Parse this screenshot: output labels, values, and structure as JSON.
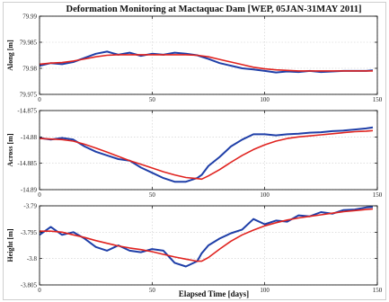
{
  "figure": {
    "title": "Deformation Monitoring at Mactaquac Dam [WEP, 05JAN-31MAY 2011]",
    "xlabel": "Elapsed Time [days]"
  },
  "colors": {
    "observed": "#1f3fa8",
    "model": "#e0231f",
    "axes": "#000000",
    "grid": "#cccccc"
  },
  "chart_data": [
    {
      "type": "line",
      "ylabel": "Along [m]",
      "xlim": [
        0,
        150
      ],
      "ylim": [
        79.975,
        79.99
      ],
      "x_ticks": [
        0,
        50,
        100,
        150
      ],
      "x_tick_labels": [
        "0",
        "50",
        "100",
        "150"
      ],
      "y_ticks": [
        79.975,
        79.98,
        79.985,
        79.99
      ],
      "y_tick_labels": [
        "79.975",
        "79.98",
        "79.985",
        "79.99"
      ],
      "grid": true,
      "series": [
        {
          "x": [
            0,
            5,
            10,
            15,
            20,
            25,
            30,
            35,
            40,
            45,
            50,
            55,
            60,
            65,
            70,
            75,
            80,
            85,
            90,
            95,
            100,
            105,
            110,
            115,
            120,
            125,
            130,
            135,
            140,
            145,
            148
          ],
          "values": [
            79.9805,
            79.981,
            79.9808,
            79.9812,
            79.982,
            79.9828,
            79.9832,
            79.9826,
            79.983,
            79.9824,
            79.9828,
            79.9826,
            79.983,
            79.9828,
            79.9825,
            79.9818,
            79.981,
            79.9805,
            79.98,
            79.9798,
            79.9795,
            79.9792,
            79.9794,
            79.9793,
            79.9795,
            79.9793,
            79.9794,
            79.9795,
            79.9795,
            79.9795,
            79.9796
          ]
        },
        {
          "x": [
            0,
            5,
            10,
            15,
            20,
            25,
            30,
            35,
            40,
            45,
            50,
            55,
            60,
            65,
            70,
            75,
            80,
            85,
            90,
            95,
            100,
            105,
            110,
            115,
            120,
            125,
            130,
            135,
            140,
            145,
            148
          ],
          "values": [
            79.9808,
            79.981,
            79.9811,
            79.9814,
            79.9818,
            79.9822,
            79.9825,
            79.9826,
            79.9826,
            79.9826,
            79.9826,
            79.9826,
            79.9826,
            79.9826,
            79.9825,
            79.9822,
            79.9817,
            79.9812,
            79.9807,
            79.9802,
            79.9799,
            79.9797,
            79.9796,
            79.9795,
            79.9795,
            79.9795,
            79.9795,
            79.9795,
            79.9795,
            79.9795,
            79.9795
          ]
        }
      ]
    },
    {
      "type": "line",
      "ylabel": "Across [m]",
      "xlim": [
        0,
        150
      ],
      "ylim": [
        -14.89,
        -14.875
      ],
      "x_ticks": [
        0,
        50,
        100,
        150
      ],
      "x_tick_labels": [
        "0",
        "50",
        "100",
        "150"
      ],
      "y_ticks": [
        -14.89,
        -14.885,
        -14.88,
        -14.875
      ],
      "y_tick_labels": [
        "-14.89",
        "-14.885",
        "-14.88",
        "-14.875"
      ],
      "grid": true,
      "series": [
        {
          "x": [
            0,
            5,
            10,
            15,
            20,
            25,
            30,
            35,
            40,
            45,
            50,
            55,
            60,
            65,
            70,
            72,
            75,
            80,
            85,
            90,
            95,
            100,
            105,
            110,
            115,
            120,
            125,
            130,
            135,
            140,
            145,
            148
          ],
          "values": [
            -14.8802,
            -14.8805,
            -14.8802,
            -14.8805,
            -14.8818,
            -14.8828,
            -14.8835,
            -14.8842,
            -14.8845,
            -14.8858,
            -14.8868,
            -14.8878,
            -14.8885,
            -14.8885,
            -14.8878,
            -14.8872,
            -14.8855,
            -14.8838,
            -14.8818,
            -14.8805,
            -14.8795,
            -14.8795,
            -14.8797,
            -14.8795,
            -14.8794,
            -14.8792,
            -14.8791,
            -14.8789,
            -14.8788,
            -14.8786,
            -14.8784,
            -14.8782
          ]
        },
        {
          "x": [
            0,
            5,
            10,
            15,
            20,
            25,
            30,
            35,
            40,
            45,
            50,
            55,
            60,
            65,
            70,
            72,
            75,
            80,
            85,
            90,
            95,
            100,
            105,
            110,
            115,
            120,
            125,
            130,
            135,
            140,
            145,
            148
          ],
          "values": [
            -14.8803,
            -14.8804,
            -14.8805,
            -14.8808,
            -14.8814,
            -14.8821,
            -14.8829,
            -14.8837,
            -14.8845,
            -14.8852,
            -14.8859,
            -14.8866,
            -14.8872,
            -14.8877,
            -14.8879,
            -14.888,
            -14.8874,
            -14.8862,
            -14.8848,
            -14.8835,
            -14.8824,
            -14.8815,
            -14.8808,
            -14.8803,
            -14.88,
            -14.8798,
            -14.8796,
            -14.8794,
            -14.8792,
            -14.879,
            -14.8789,
            -14.8788
          ]
        }
      ]
    },
    {
      "type": "line",
      "ylabel": "Height [m]",
      "xlim": [
        0,
        150
      ],
      "ylim": [
        -3.805,
        -3.79
      ],
      "x_ticks": [
        0,
        50,
        100,
        150
      ],
      "x_tick_labels": [
        "0",
        "50",
        "100",
        "150"
      ],
      "y_ticks": [
        -3.805,
        -3.8,
        -3.795,
        -3.79
      ],
      "y_tick_labels": [
        "-3.805",
        "-3.8",
        "-3.795",
        "-3.79"
      ],
      "grid": true,
      "series": [
        {
          "x": [
            0,
            5,
            10,
            15,
            20,
            25,
            30,
            35,
            40,
            45,
            50,
            55,
            60,
            65,
            70,
            72,
            75,
            80,
            85,
            90,
            95,
            100,
            105,
            110,
            115,
            120,
            125,
            130,
            135,
            140,
            145,
            148
          ],
          "values": [
            -3.7955,
            -3.794,
            -3.7955,
            -3.795,
            -3.7962,
            -3.7978,
            -3.7985,
            -3.7975,
            -3.7985,
            -3.7988,
            -3.7982,
            -3.7985,
            -3.8008,
            -3.8015,
            -3.8005,
            -3.799,
            -3.7975,
            -3.7962,
            -3.7952,
            -3.7945,
            -3.7925,
            -3.7935,
            -3.7928,
            -3.793,
            -3.7918,
            -3.792,
            -3.7912,
            -3.7915,
            -3.7908,
            -3.7907,
            -3.7903,
            -3.7902
          ]
        },
        {
          "x": [
            0,
            5,
            10,
            15,
            20,
            25,
            30,
            35,
            40,
            45,
            50,
            55,
            60,
            65,
            70,
            72,
            75,
            80,
            85,
            90,
            95,
            100,
            105,
            110,
            115,
            120,
            125,
            130,
            135,
            140,
            145,
            148
          ],
          "values": [
            -3.7948,
            -3.7948,
            -3.795,
            -3.7955,
            -3.796,
            -3.7966,
            -3.7971,
            -3.7976,
            -3.798,
            -3.7983,
            -3.7987,
            -3.7992,
            -3.7997,
            -3.8001,
            -3.8005,
            -3.8005,
            -3.7998,
            -3.7982,
            -3.7967,
            -3.7955,
            -3.7946,
            -3.7938,
            -3.7932,
            -3.7927,
            -3.7923,
            -3.792,
            -3.7917,
            -3.7914,
            -3.7911,
            -3.7909,
            -3.7907,
            -3.7906
          ]
        }
      ]
    }
  ]
}
